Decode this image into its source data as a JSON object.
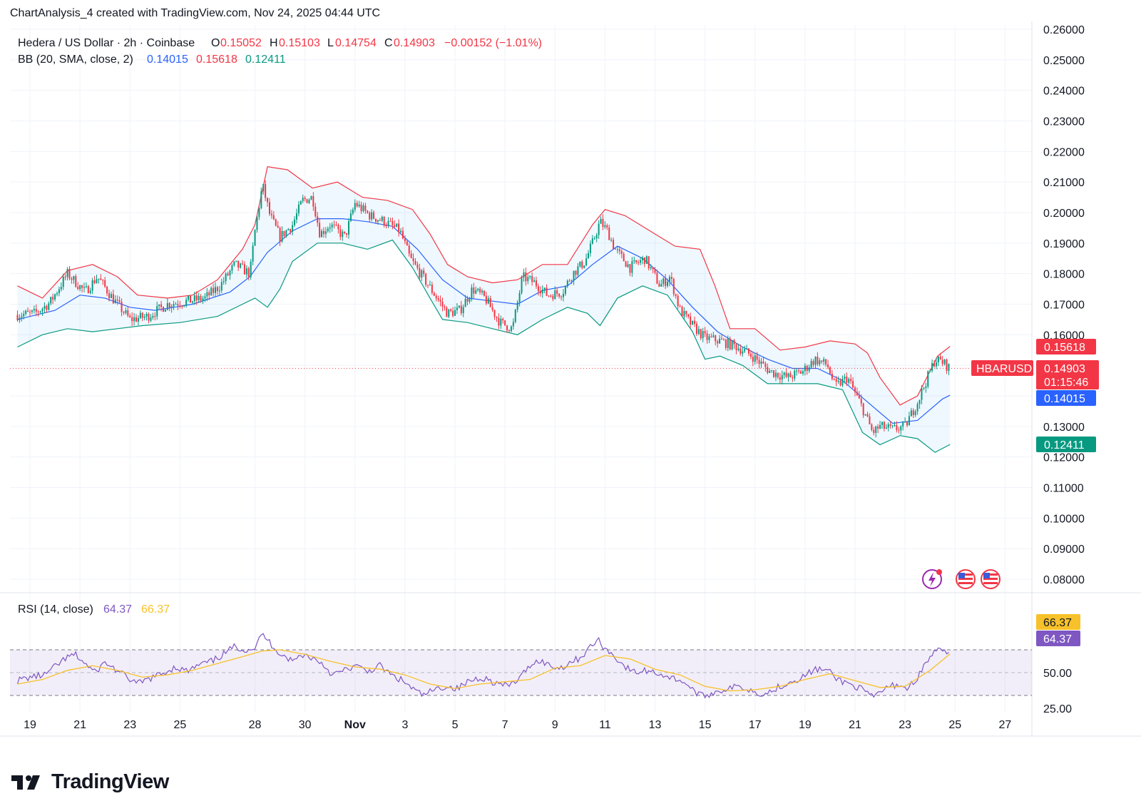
{
  "header": {
    "author": "ChartAnalysis_4",
    "text": "ChartAnalysis_4 created with TradingView.com, Nov 24, 2025 04:44 UTC"
  },
  "footer": {
    "brand": "TradingView"
  },
  "colors": {
    "up": "#089981",
    "down": "#f23645",
    "bb_basis": "#2962ff",
    "bb_upper": "#f23645",
    "bb_lower": "#089981",
    "bb_fill": "#2196f3",
    "rsi": "#7e57c2",
    "rsi_ma": "#f7c12a",
    "grid": "#f0f3fa",
    "text": "#131722"
  },
  "chart_data": [
    {
      "type": "candlestick",
      "symbol_title": "Hedera / US Dollar · 2h · Coinbase",
      "ticker": "HBARUSD",
      "ohlc": {
        "o_label": "O",
        "o": "0.15052",
        "h_label": "H",
        "h": "0.15103",
        "l_label": "L",
        "l": "0.14754",
        "c_label": "C",
        "c": "0.14903",
        "change": "−0.00152 (−1.01%)"
      },
      "countdown": "01:15:46",
      "bb": {
        "title": "BB (20, SMA, close, 2)",
        "basis": "0.14015",
        "upper": "0.15618",
        "lower": "0.12411"
      },
      "last_price": "0.14903",
      "y_ticks": [
        "0.26000",
        "0.25000",
        "0.24000",
        "0.23000",
        "0.22000",
        "0.21000",
        "0.20000",
        "0.19000",
        "0.18000",
        "0.17000",
        "0.16000",
        "0.15000",
        "0.14000",
        "0.13000",
        "0.12000",
        "0.11000",
        "0.10000",
        "0.09000",
        "0.08000"
      ],
      "ylim": [
        0.08,
        0.26
      ],
      "x_ticks": [
        "19",
        "21",
        "23",
        "25",
        "28",
        "30",
        "Nov",
        "3",
        "5",
        "7",
        "9",
        "11",
        "13",
        "15",
        "17",
        "19",
        "21",
        "23",
        "25",
        "27"
      ],
      "x_tick_days": [
        19,
        21,
        23,
        25,
        28,
        30,
        32,
        34,
        36,
        38,
        40,
        42,
        44,
        46,
        48,
        50,
        52,
        54,
        56,
        58
      ],
      "x_start_day": 18.5,
      "x_end_day": 59.2,
      "close_path": [
        [
          18.5,
          0.1665
        ],
        [
          19.2,
          0.167
        ],
        [
          19.8,
          0.1705
        ],
        [
          20.5,
          0.18
        ],
        [
          21.2,
          0.174
        ],
        [
          21.7,
          0.179
        ],
        [
          22.3,
          0.172
        ],
        [
          23.0,
          0.165
        ],
        [
          23.7,
          0.166
        ],
        [
          24.5,
          0.17
        ],
        [
          25.3,
          0.171
        ],
        [
          26.0,
          0.172
        ],
        [
          26.6,
          0.176
        ],
        [
          27.2,
          0.183
        ],
        [
          27.8,
          0.18
        ],
        [
          28.0,
          0.194
        ],
        [
          28.3,
          0.209
        ],
        [
          28.6,
          0.199
        ],
        [
          29.0,
          0.192
        ],
        [
          29.5,
          0.196
        ],
        [
          29.9,
          0.204
        ],
        [
          30.3,
          0.205
        ],
        [
          30.6,
          0.193
        ],
        [
          31.0,
          0.196
        ],
        [
          31.6,
          0.192
        ],
        [
          32.0,
          0.203
        ],
        [
          32.6,
          0.199
        ],
        [
          33.2,
          0.197
        ],
        [
          33.8,
          0.194
        ],
        [
          34.2,
          0.185
        ],
        [
          34.7,
          0.179
        ],
        [
          35.2,
          0.173
        ],
        [
          35.7,
          0.167
        ],
        [
          36.2,
          0.168
        ],
        [
          36.7,
          0.175
        ],
        [
          37.2,
          0.172
        ],
        [
          37.8,
          0.164
        ],
        [
          38.3,
          0.162
        ],
        [
          38.7,
          0.179
        ],
        [
          39.2,
          0.177
        ],
        [
          39.7,
          0.173
        ],
        [
          40.3,
          0.174
        ],
        [
          40.7,
          0.18
        ],
        [
          41.2,
          0.184
        ],
        [
          41.5,
          0.19
        ],
        [
          41.8,
          0.197
        ],
        [
          42.1,
          0.194
        ],
        [
          42.4,
          0.188
        ],
        [
          43.0,
          0.182
        ],
        [
          43.6,
          0.185
        ],
        [
          44.2,
          0.176
        ],
        [
          44.6,
          0.179
        ],
        [
          45.0,
          0.168
        ],
        [
          45.5,
          0.163
        ],
        [
          46.0,
          0.159
        ],
        [
          46.6,
          0.158
        ],
        [
          47.3,
          0.156
        ],
        [
          47.9,
          0.153
        ],
        [
          48.6,
          0.148
        ],
        [
          49.3,
          0.146
        ],
        [
          49.9,
          0.148
        ],
        [
          50.4,
          0.152
        ],
        [
          50.9,
          0.15
        ],
        [
          51.2,
          0.143
        ],
        [
          51.7,
          0.146
        ],
        [
          52.3,
          0.136
        ],
        [
          52.7,
          0.128
        ],
        [
          53.0,
          0.13
        ],
        [
          53.5,
          0.129
        ],
        [
          54.0,
          0.13
        ],
        [
          54.5,
          0.138
        ],
        [
          54.9,
          0.146
        ],
        [
          55.2,
          0.152
        ],
        [
          55.5,
          0.151
        ],
        [
          55.8,
          0.149
        ]
      ],
      "bb_basis_path": [
        [
          18.5,
          0.165
        ],
        [
          20.0,
          0.168
        ],
        [
          21.0,
          0.173
        ],
        [
          22.0,
          0.172
        ],
        [
          23.0,
          0.169
        ],
        [
          24.0,
          0.168
        ],
        [
          25.5,
          0.17
        ],
        [
          27.0,
          0.174
        ],
        [
          27.8,
          0.179
        ],
        [
          28.5,
          0.187
        ],
        [
          29.5,
          0.194
        ],
        [
          30.5,
          0.198
        ],
        [
          31.5,
          0.198
        ],
        [
          32.5,
          0.197
        ],
        [
          33.5,
          0.1955
        ],
        [
          34.5,
          0.188
        ],
        [
          35.5,
          0.178
        ],
        [
          36.5,
          0.172
        ],
        [
          37.5,
          0.171
        ],
        [
          38.5,
          0.17
        ],
        [
          39.5,
          0.1745
        ],
        [
          40.5,
          0.176
        ],
        [
          41.5,
          0.183
        ],
        [
          42.5,
          0.189
        ],
        [
          43.5,
          0.185
        ],
        [
          44.5,
          0.178
        ],
        [
          45.5,
          0.169
        ],
        [
          46.5,
          0.161
        ],
        [
          47.5,
          0.156
        ],
        [
          48.5,
          0.152
        ],
        [
          49.5,
          0.149
        ],
        [
          50.5,
          0.149
        ],
        [
          51.5,
          0.145
        ],
        [
          52.5,
          0.138
        ],
        [
          53.5,
          0.131
        ],
        [
          54.5,
          0.132
        ],
        [
          55.5,
          0.139
        ],
        [
          55.8,
          0.1402
        ]
      ],
      "bb_upper_path": [
        [
          18.5,
          0.176
        ],
        [
          19.5,
          0.172
        ],
        [
          20.5,
          0.181
        ],
        [
          21.5,
          0.183
        ],
        [
          22.5,
          0.179
        ],
        [
          23.3,
          0.173
        ],
        [
          24.5,
          0.172
        ],
        [
          25.5,
          0.173
        ],
        [
          26.5,
          0.178
        ],
        [
          27.5,
          0.188
        ],
        [
          28.0,
          0.196
        ],
        [
          28.5,
          0.215
        ],
        [
          29.3,
          0.214
        ],
        [
          30.3,
          0.208
        ],
        [
          31.3,
          0.21
        ],
        [
          32.3,
          0.205
        ],
        [
          33.3,
          0.204
        ],
        [
          34.3,
          0.201
        ],
        [
          35.0,
          0.193
        ],
        [
          35.7,
          0.183
        ],
        [
          36.5,
          0.179
        ],
        [
          37.5,
          0.177
        ],
        [
          38.5,
          0.178
        ],
        [
          39.5,
          0.183
        ],
        [
          40.5,
          0.183
        ],
        [
          41.5,
          0.196
        ],
        [
          42.0,
          0.201
        ],
        [
          42.8,
          0.199
        ],
        [
          43.8,
          0.194
        ],
        [
          44.8,
          0.189
        ],
        [
          45.8,
          0.188
        ],
        [
          46.4,
          0.176
        ],
        [
          47.0,
          0.162
        ],
        [
          48.0,
          0.162
        ],
        [
          49.0,
          0.155
        ],
        [
          50.0,
          0.156
        ],
        [
          51.0,
          0.158
        ],
        [
          52.0,
          0.157
        ],
        [
          52.5,
          0.154
        ],
        [
          53.0,
          0.146
        ],
        [
          53.8,
          0.137
        ],
        [
          54.5,
          0.14
        ],
        [
          55.3,
          0.153
        ],
        [
          55.8,
          0.1562
        ]
      ],
      "bb_lower_path": [
        [
          18.5,
          0.156
        ],
        [
          19.5,
          0.16
        ],
        [
          20.5,
          0.162
        ],
        [
          21.5,
          0.161
        ],
        [
          22.5,
          0.162
        ],
        [
          23.5,
          0.163
        ],
        [
          25.0,
          0.164
        ],
        [
          26.5,
          0.166
        ],
        [
          27.5,
          0.17
        ],
        [
          28.0,
          0.172
        ],
        [
          28.5,
          0.169
        ],
        [
          29.0,
          0.175
        ],
        [
          29.5,
          0.184
        ],
        [
          30.5,
          0.19
        ],
        [
          31.5,
          0.19
        ],
        [
          32.5,
          0.188
        ],
        [
          33.5,
          0.191
        ],
        [
          34.3,
          0.182
        ],
        [
          35.0,
          0.172
        ],
        [
          35.5,
          0.165
        ],
        [
          36.5,
          0.164
        ],
        [
          37.5,
          0.162
        ],
        [
          38.5,
          0.16
        ],
        [
          39.5,
          0.165
        ],
        [
          40.5,
          0.169
        ],
        [
          41.3,
          0.167
        ],
        [
          41.8,
          0.163
        ],
        [
          42.5,
          0.172
        ],
        [
          43.5,
          0.176
        ],
        [
          44.5,
          0.173
        ],
        [
          45.5,
          0.161
        ],
        [
          46.0,
          0.152
        ],
        [
          46.6,
          0.153
        ],
        [
          47.5,
          0.15
        ],
        [
          48.5,
          0.144
        ],
        [
          49.5,
          0.144
        ],
        [
          50.5,
          0.144
        ],
        [
          51.5,
          0.142
        ],
        [
          52.3,
          0.128
        ],
        [
          53.0,
          0.124
        ],
        [
          53.8,
          0.127
        ],
        [
          54.5,
          0.126
        ],
        [
          55.2,
          0.1215
        ],
        [
          55.8,
          0.1241
        ]
      ]
    },
    {
      "type": "line",
      "title": "RSI (14, close)",
      "rsi_value": "64.37",
      "ma_value": "66.37",
      "upper_band": 70,
      "lower_band": 30,
      "y_ticks": [
        "50.00",
        "25.00"
      ],
      "y_tick_values": [
        50,
        25
      ],
      "ylim": [
        17,
        90
      ],
      "rsi_path": [
        [
          18.5,
          43
        ],
        [
          19.0,
          46
        ],
        [
          19.6,
          48
        ],
        [
          20.0,
          55
        ],
        [
          20.4,
          62
        ],
        [
          20.8,
          66
        ],
        [
          21.2,
          58
        ],
        [
          21.6,
          50
        ],
        [
          22.0,
          59
        ],
        [
          22.4,
          53
        ],
        [
          22.8,
          47
        ],
        [
          23.3,
          40
        ],
        [
          23.8,
          45
        ],
        [
          24.3,
          49
        ],
        [
          24.8,
          55
        ],
        [
          25.3,
          51
        ],
        [
          25.8,
          57
        ],
        [
          26.3,
          60
        ],
        [
          26.8,
          67
        ],
        [
          27.2,
          73
        ],
        [
          27.6,
          70
        ],
        [
          28.0,
          72
        ],
        [
          28.3,
          84
        ],
        [
          28.6,
          76
        ],
        [
          29.0,
          67
        ],
        [
          29.5,
          60
        ],
        [
          29.9,
          66
        ],
        [
          30.3,
          63
        ],
        [
          30.7,
          58
        ],
        [
          31.1,
          48
        ],
        [
          31.6,
          52
        ],
        [
          32.0,
          56
        ],
        [
          32.5,
          51
        ],
        [
          33.0,
          56
        ],
        [
          33.5,
          47
        ],
        [
          33.9,
          43
        ],
        [
          34.3,
          36
        ],
        [
          34.7,
          30
        ],
        [
          35.1,
          34
        ],
        [
          35.6,
          38
        ],
        [
          36.1,
          36
        ],
        [
          36.6,
          43
        ],
        [
          37.1,
          46
        ],
        [
          37.6,
          41
        ],
        [
          38.1,
          38
        ],
        [
          38.6,
          45
        ],
        [
          39.0,
          57
        ],
        [
          39.4,
          61
        ],
        [
          39.8,
          56
        ],
        [
          40.2,
          54
        ],
        [
          40.6,
          59
        ],
        [
          41.0,
          63
        ],
        [
          41.4,
          72
        ],
        [
          41.7,
          79
        ],
        [
          42.0,
          71
        ],
        [
          42.4,
          64
        ],
        [
          42.8,
          55
        ],
        [
          43.2,
          50
        ],
        [
          43.7,
          52
        ],
        [
          44.2,
          49
        ],
        [
          44.7,
          45
        ],
        [
          45.1,
          43
        ],
        [
          45.5,
          35
        ],
        [
          45.9,
          29
        ],
        [
          46.4,
          33
        ],
        [
          46.9,
          36
        ],
        [
          47.4,
          38
        ],
        [
          47.9,
          34
        ],
        [
          48.4,
          31
        ],
        [
          48.9,
          37
        ],
        [
          49.4,
          42
        ],
        [
          49.9,
          46
        ],
        [
          50.4,
          53
        ],
        [
          50.9,
          52
        ],
        [
          51.3,
          44
        ],
        [
          51.8,
          40
        ],
        [
          52.3,
          35
        ],
        [
          52.7,
          28
        ],
        [
          53.2,
          36
        ],
        [
          53.7,
          40
        ],
        [
          54.1,
          36
        ],
        [
          54.5,
          46
        ],
        [
          54.9,
          60
        ],
        [
          55.2,
          70
        ],
        [
          55.5,
          68
        ],
        [
          55.8,
          64.4
        ]
      ],
      "ma_path": [
        [
          18.5,
          40
        ],
        [
          19.5,
          44
        ],
        [
          20.5,
          52
        ],
        [
          21.5,
          56
        ],
        [
          22.5,
          52
        ],
        [
          23.5,
          46
        ],
        [
          24.5,
          48
        ],
        [
          25.5,
          52
        ],
        [
          26.5,
          58
        ],
        [
          27.5,
          64
        ],
        [
          28.3,
          69
        ],
        [
          29.0,
          70
        ],
        [
          30.0,
          66
        ],
        [
          31.0,
          60
        ],
        [
          32.0,
          55
        ],
        [
          33.0,
          53
        ],
        [
          34.0,
          48
        ],
        [
          35.0,
          40
        ],
        [
          36.0,
          36
        ],
        [
          37.0,
          40
        ],
        [
          38.0,
          42
        ],
        [
          39.0,
          44
        ],
        [
          40.0,
          54
        ],
        [
          41.0,
          56
        ],
        [
          42.0,
          65
        ],
        [
          43.0,
          62
        ],
        [
          44.0,
          53
        ],
        [
          45.0,
          48
        ],
        [
          46.0,
          38
        ],
        [
          47.0,
          34
        ],
        [
          48.0,
          35
        ],
        [
          49.0,
          38
        ],
        [
          50.0,
          44
        ],
        [
          51.0,
          49
        ],
        [
          52.0,
          43
        ],
        [
          53.0,
          37
        ],
        [
          54.0,
          38
        ],
        [
          55.0,
          52
        ],
        [
          55.8,
          66.4
        ]
      ]
    }
  ]
}
